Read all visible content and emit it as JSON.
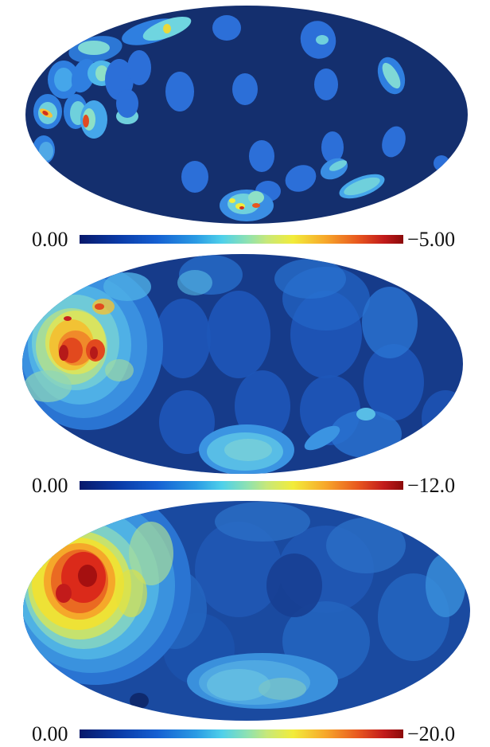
{
  "chart_data": [
    {
      "type": "heatmap",
      "projection": "mollweide",
      "background_color": "#142f6e",
      "colorbar": {
        "min_label": "0.00",
        "max_label": "−5.00"
      },
      "colormap": "jet"
    },
    {
      "type": "heatmap",
      "projection": "mollweide",
      "background_color": "#163b8a",
      "colorbar": {
        "min_label": "0.00",
        "max_label": "−12.0"
      },
      "colormap": "jet"
    },
    {
      "type": "heatmap",
      "projection": "mollweide",
      "background_color": "#1a4aa0",
      "colorbar": {
        "min_label": "0.00",
        "max_label": "−20.0"
      },
      "colormap": "jet"
    }
  ]
}
